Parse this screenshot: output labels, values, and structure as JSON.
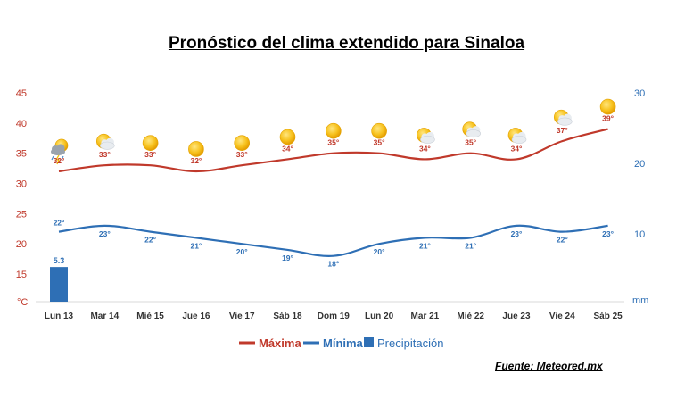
{
  "title": "Pronóstico del clima extendido para Sinaloa",
  "source": "Fuente: Meteored.mx",
  "chart_data": {
    "type": "line",
    "categories": [
      "Lun 13",
      "Mar 14",
      "Mié 15",
      "Jue 16",
      "Vie 17",
      "Sáb 18",
      "Dom 19",
      "Lun 20",
      "Mar 21",
      "Mié 22",
      "Jue 23",
      "Vie 24",
      "Sáb 25"
    ],
    "left_axis": {
      "unit": "°C",
      "ticks": [
        15,
        20,
        25,
        30,
        35,
        40,
        45
      ],
      "range": [
        12,
        45
      ]
    },
    "right_axis": {
      "unit": "mm",
      "ticks": [
        10,
        20,
        30
      ],
      "range": [
        0,
        30
      ]
    },
    "series": [
      {
        "name": "Máxima",
        "color": "#c0392b",
        "axis": "left",
        "values": [
          32,
          33,
          33,
          32,
          33,
          34,
          35,
          35,
          34,
          35,
          34,
          37,
          39
        ]
      },
      {
        "name": "Mínima",
        "color": "#2e6fb5",
        "axis": "left",
        "values": [
          22,
          23,
          22,
          21,
          20,
          19,
          18,
          20,
          21,
          21,
          23,
          22,
          23
        ]
      },
      {
        "name": "Precipitación",
        "color": "#2e6fb5",
        "axis": "right",
        "type": "bar",
        "values": [
          5.3,
          0,
          0,
          0,
          0,
          0,
          0,
          0,
          0,
          0,
          0,
          0,
          0
        ]
      }
    ],
    "max_labels": [
      "32°",
      "33°",
      "33°",
      "32°",
      "33°",
      "34°",
      "35°",
      "35°",
      "34°",
      "35°",
      "34°",
      "37°",
      "39°"
    ],
    "min_labels": [
      "22°",
      "23°",
      "22°",
      "21°",
      "20°",
      "19°",
      "18°",
      "20°",
      "21°",
      "21°",
      "23°",
      "22°",
      "23°"
    ],
    "precip_labels": [
      "5.3",
      "",
      "",
      "",
      "",
      "",
      "",
      "",
      "",
      "",
      "",
      "",
      ""
    ],
    "icons": [
      "storm-icon",
      "partly-cloudy-icon",
      "sun-icon",
      "sun-icon",
      "sun-icon",
      "sun-icon",
      "sun-icon",
      "sun-icon",
      "partly-cloudy-icon",
      "partly-cloudy-icon",
      "partly-cloudy-icon",
      "partly-cloudy-icon",
      "sun-icon"
    ],
    "legend": [
      "Máxima",
      "Mínima",
      "Precipitación"
    ],
    "legend_position": "bottom"
  }
}
